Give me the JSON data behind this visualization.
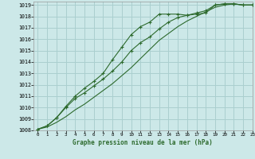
{
  "title": "Graphe pression niveau de la mer (hPa)",
  "background_color": "#cce8e8",
  "grid_color": "#aacfcf",
  "line_color": "#2d6a2d",
  "xlim": [
    -0.5,
    23
  ],
  "ylim": [
    1008,
    1019.3
  ],
  "xticks": [
    0,
    1,
    2,
    3,
    4,
    5,
    6,
    7,
    8,
    9,
    10,
    11,
    12,
    13,
    14,
    15,
    16,
    17,
    18,
    19,
    20,
    21,
    22,
    23
  ],
  "yticks": [
    1008,
    1009,
    1010,
    1011,
    1012,
    1013,
    1014,
    1015,
    1016,
    1017,
    1018,
    1019
  ],
  "line1_x": [
    0,
    1,
    2,
    3,
    4,
    5,
    6,
    7,
    8,
    9,
    10,
    11,
    12,
    13,
    14,
    15,
    16,
    17,
    18,
    19,
    20,
    21,
    22,
    23
  ],
  "line1_y": [
    1008.1,
    1008.4,
    1009.1,
    1010.1,
    1011.0,
    1011.7,
    1012.3,
    1013.0,
    1014.2,
    1015.3,
    1016.4,
    1017.1,
    1017.5,
    1018.2,
    1018.2,
    1018.2,
    1018.1,
    1018.2,
    1018.3,
    1019.0,
    1019.1,
    1019.1,
    1019.0,
    1019.0
  ],
  "line2_x": [
    0,
    1,
    2,
    3,
    4,
    5,
    6,
    7,
    8,
    9,
    10,
    11,
    12,
    13,
    14,
    15,
    16,
    17,
    18,
    19,
    20,
    21,
    22,
    23
  ],
  "line2_y": [
    1008.1,
    1008.4,
    1009.1,
    1010.0,
    1010.8,
    1011.3,
    1011.9,
    1012.5,
    1013.2,
    1014.0,
    1015.0,
    1015.7,
    1016.2,
    1016.9,
    1017.5,
    1017.9,
    1018.1,
    1018.3,
    1018.5,
    1019.0,
    1019.1,
    1019.1,
    1019.0,
    1019.0
  ],
  "line3_x": [
    0,
    1,
    2,
    3,
    4,
    5,
    6,
    7,
    8,
    9,
    10,
    11,
    12,
    13,
    14,
    15,
    16,
    17,
    18,
    19,
    20,
    21,
    22,
    23
  ],
  "line3_y": [
    1008.1,
    1008.3,
    1008.7,
    1009.2,
    1009.8,
    1010.3,
    1010.9,
    1011.5,
    1012.1,
    1012.8,
    1013.5,
    1014.3,
    1015.1,
    1015.9,
    1016.5,
    1017.1,
    1017.6,
    1018.0,
    1018.4,
    1018.8,
    1019.0,
    1019.1,
    1019.0,
    1019.0
  ]
}
